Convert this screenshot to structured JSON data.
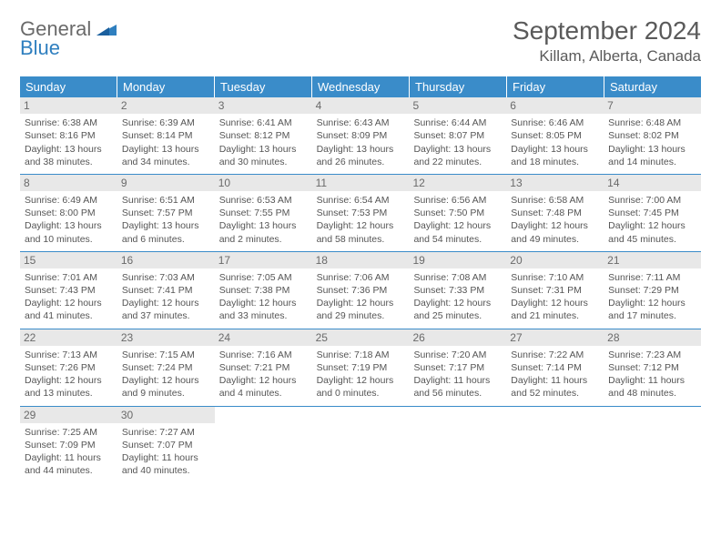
{
  "logo": {
    "line1": "General",
    "line2": "Blue"
  },
  "title": "September 2024",
  "location": "Killam, Alberta, Canada",
  "colors": {
    "header_bg": "#3a8cc9",
    "header_text": "#ffffff",
    "daynum_bg": "#e8e8e8",
    "text": "#555555",
    "rule": "#3a8cc9"
  },
  "weekdays": [
    "Sunday",
    "Monday",
    "Tuesday",
    "Wednesday",
    "Thursday",
    "Friday",
    "Saturday"
  ],
  "weeks": [
    [
      {
        "n": "1",
        "sr": "Sunrise: 6:38 AM",
        "ss": "Sunset: 8:16 PM",
        "dl": "Daylight: 13 hours and 38 minutes."
      },
      {
        "n": "2",
        "sr": "Sunrise: 6:39 AM",
        "ss": "Sunset: 8:14 PM",
        "dl": "Daylight: 13 hours and 34 minutes."
      },
      {
        "n": "3",
        "sr": "Sunrise: 6:41 AM",
        "ss": "Sunset: 8:12 PM",
        "dl": "Daylight: 13 hours and 30 minutes."
      },
      {
        "n": "4",
        "sr": "Sunrise: 6:43 AM",
        "ss": "Sunset: 8:09 PM",
        "dl": "Daylight: 13 hours and 26 minutes."
      },
      {
        "n": "5",
        "sr": "Sunrise: 6:44 AM",
        "ss": "Sunset: 8:07 PM",
        "dl": "Daylight: 13 hours and 22 minutes."
      },
      {
        "n": "6",
        "sr": "Sunrise: 6:46 AM",
        "ss": "Sunset: 8:05 PM",
        "dl": "Daylight: 13 hours and 18 minutes."
      },
      {
        "n": "7",
        "sr": "Sunrise: 6:48 AM",
        "ss": "Sunset: 8:02 PM",
        "dl": "Daylight: 13 hours and 14 minutes."
      }
    ],
    [
      {
        "n": "8",
        "sr": "Sunrise: 6:49 AM",
        "ss": "Sunset: 8:00 PM",
        "dl": "Daylight: 13 hours and 10 minutes."
      },
      {
        "n": "9",
        "sr": "Sunrise: 6:51 AM",
        "ss": "Sunset: 7:57 PM",
        "dl": "Daylight: 13 hours and 6 minutes."
      },
      {
        "n": "10",
        "sr": "Sunrise: 6:53 AM",
        "ss": "Sunset: 7:55 PM",
        "dl": "Daylight: 13 hours and 2 minutes."
      },
      {
        "n": "11",
        "sr": "Sunrise: 6:54 AM",
        "ss": "Sunset: 7:53 PM",
        "dl": "Daylight: 12 hours and 58 minutes."
      },
      {
        "n": "12",
        "sr": "Sunrise: 6:56 AM",
        "ss": "Sunset: 7:50 PM",
        "dl": "Daylight: 12 hours and 54 minutes."
      },
      {
        "n": "13",
        "sr": "Sunrise: 6:58 AM",
        "ss": "Sunset: 7:48 PM",
        "dl": "Daylight: 12 hours and 49 minutes."
      },
      {
        "n": "14",
        "sr": "Sunrise: 7:00 AM",
        "ss": "Sunset: 7:45 PM",
        "dl": "Daylight: 12 hours and 45 minutes."
      }
    ],
    [
      {
        "n": "15",
        "sr": "Sunrise: 7:01 AM",
        "ss": "Sunset: 7:43 PM",
        "dl": "Daylight: 12 hours and 41 minutes."
      },
      {
        "n": "16",
        "sr": "Sunrise: 7:03 AM",
        "ss": "Sunset: 7:41 PM",
        "dl": "Daylight: 12 hours and 37 minutes."
      },
      {
        "n": "17",
        "sr": "Sunrise: 7:05 AM",
        "ss": "Sunset: 7:38 PM",
        "dl": "Daylight: 12 hours and 33 minutes."
      },
      {
        "n": "18",
        "sr": "Sunrise: 7:06 AM",
        "ss": "Sunset: 7:36 PM",
        "dl": "Daylight: 12 hours and 29 minutes."
      },
      {
        "n": "19",
        "sr": "Sunrise: 7:08 AM",
        "ss": "Sunset: 7:33 PM",
        "dl": "Daylight: 12 hours and 25 minutes."
      },
      {
        "n": "20",
        "sr": "Sunrise: 7:10 AM",
        "ss": "Sunset: 7:31 PM",
        "dl": "Daylight: 12 hours and 21 minutes."
      },
      {
        "n": "21",
        "sr": "Sunrise: 7:11 AM",
        "ss": "Sunset: 7:29 PM",
        "dl": "Daylight: 12 hours and 17 minutes."
      }
    ],
    [
      {
        "n": "22",
        "sr": "Sunrise: 7:13 AM",
        "ss": "Sunset: 7:26 PM",
        "dl": "Daylight: 12 hours and 13 minutes."
      },
      {
        "n": "23",
        "sr": "Sunrise: 7:15 AM",
        "ss": "Sunset: 7:24 PM",
        "dl": "Daylight: 12 hours and 9 minutes."
      },
      {
        "n": "24",
        "sr": "Sunrise: 7:16 AM",
        "ss": "Sunset: 7:21 PM",
        "dl": "Daylight: 12 hours and 4 minutes."
      },
      {
        "n": "25",
        "sr": "Sunrise: 7:18 AM",
        "ss": "Sunset: 7:19 PM",
        "dl": "Daylight: 12 hours and 0 minutes."
      },
      {
        "n": "26",
        "sr": "Sunrise: 7:20 AM",
        "ss": "Sunset: 7:17 PM",
        "dl": "Daylight: 11 hours and 56 minutes."
      },
      {
        "n": "27",
        "sr": "Sunrise: 7:22 AM",
        "ss": "Sunset: 7:14 PM",
        "dl": "Daylight: 11 hours and 52 minutes."
      },
      {
        "n": "28",
        "sr": "Sunrise: 7:23 AM",
        "ss": "Sunset: 7:12 PM",
        "dl": "Daylight: 11 hours and 48 minutes."
      }
    ],
    [
      {
        "n": "29",
        "sr": "Sunrise: 7:25 AM",
        "ss": "Sunset: 7:09 PM",
        "dl": "Daylight: 11 hours and 44 minutes."
      },
      {
        "n": "30",
        "sr": "Sunrise: 7:27 AM",
        "ss": "Sunset: 7:07 PM",
        "dl": "Daylight: 11 hours and 40 minutes."
      },
      null,
      null,
      null,
      null,
      null
    ]
  ]
}
